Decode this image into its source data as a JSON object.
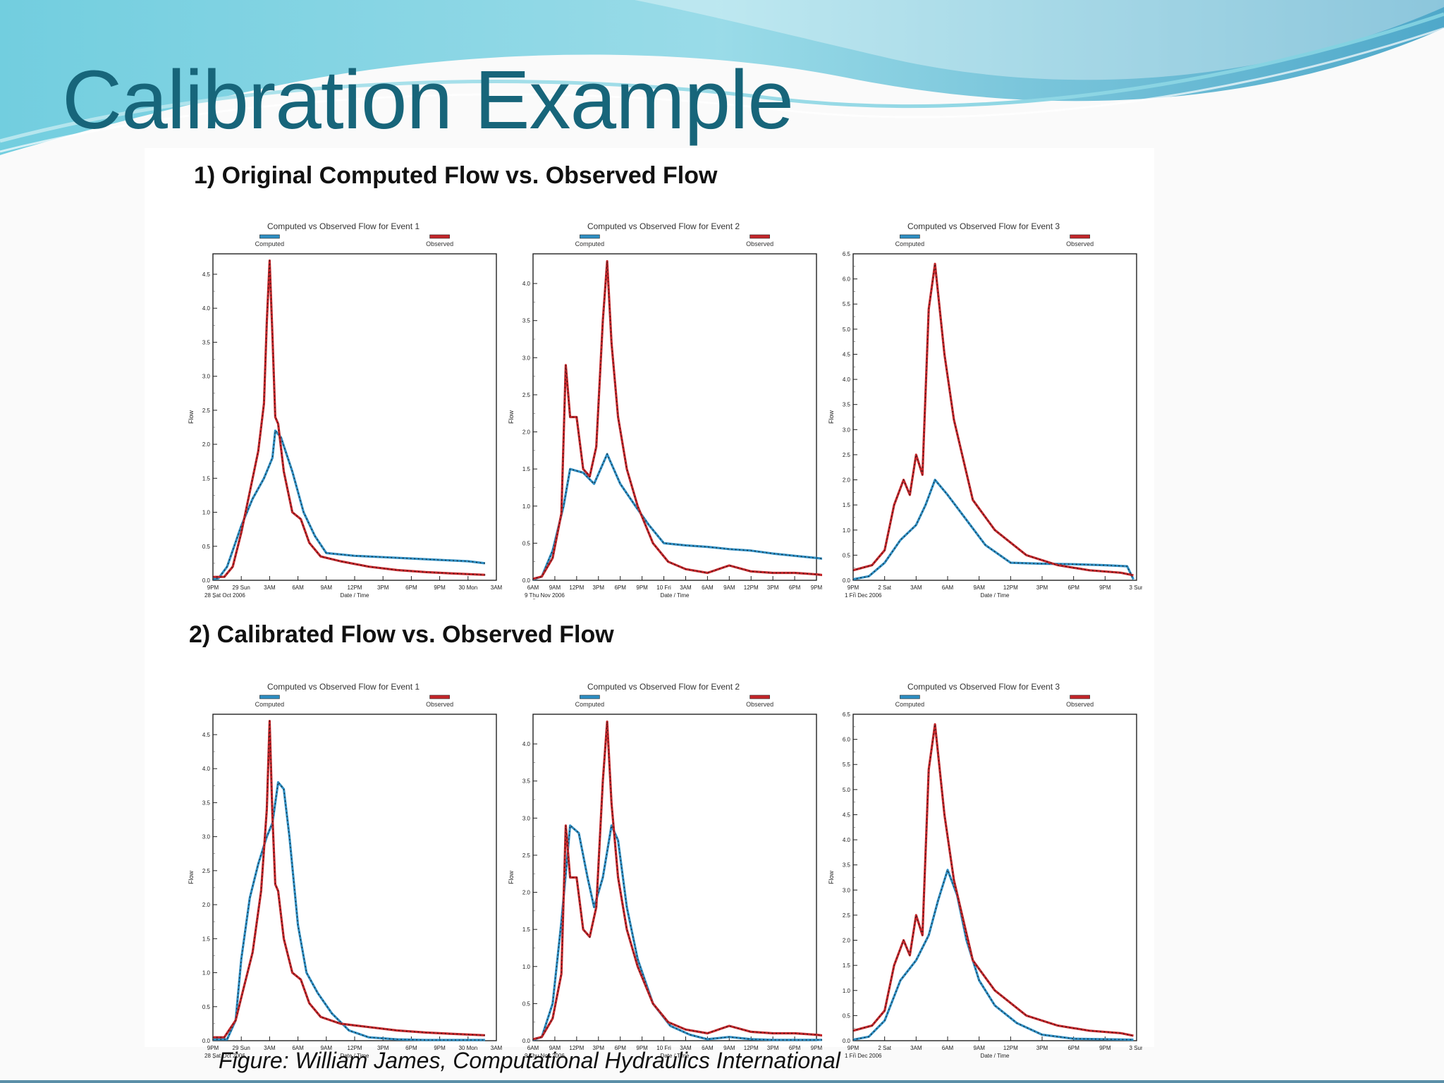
{
  "slide": {
    "title": "Calibration Example",
    "caption": "Figure: William James, Computational Hydraulics International",
    "colors": {
      "title": "#17657a",
      "header_wave_light": "#8fd8e6",
      "header_wave_dark": "#3c9fc4"
    }
  },
  "sections": [
    {
      "heading": "1) Original Computed Flow vs. Observed Flow"
    },
    {
      "heading": "2) Calibrated Flow vs. Observed Flow"
    }
  ],
  "chart_data": [
    {
      "id": "s1-event1",
      "type": "line",
      "title": "Computed vs Observed Flow for Event 1",
      "xlabel": "Date / Time",
      "ylabel": "Flow",
      "x_ticks": [
        "9PM",
        "29 Sun",
        "3AM",
        "6AM",
        "9AM",
        "12PM",
        "3PM",
        "6PM",
        "9PM",
        "30 Mon",
        "3AM"
      ],
      "x_start_label": "28 Sat Oct 2006",
      "ylim": [
        0,
        4.8
      ],
      "y_ticks": [
        "0.0",
        "0.5",
        "1.0",
        "1.5",
        "2.0",
        "2.5",
        "3.0",
        "3.5",
        "4.0",
        "4.5"
      ],
      "series": [
        {
          "name": "Computed",
          "color": "#2f8fc4",
          "x": [
            0,
            0.2,
            0.5,
            1,
            1.4,
            1.8,
            2.1,
            2.2,
            2.4,
            2.8,
            3.2,
            3.6,
            4,
            4.5,
            5,
            6,
            7,
            8,
            9,
            9.6
          ],
          "values": [
            0.02,
            0.03,
            0.2,
            0.8,
            1.2,
            1.5,
            1.8,
            2.2,
            2.1,
            1.6,
            1.0,
            0.65,
            0.4,
            0.38,
            0.36,
            0.34,
            0.32,
            0.3,
            0.28,
            0.25
          ]
        },
        {
          "name": "Observed",
          "color": "#c4262a",
          "x": [
            0,
            0.4,
            0.7,
            1.0,
            1.3,
            1.6,
            1.8,
            1.9,
            2.0,
            2.1,
            2.2,
            2.3,
            2.5,
            2.8,
            3.1,
            3.4,
            3.8,
            4.5,
            5.5,
            6.5,
            7.5,
            8.5,
            9.6
          ],
          "values": [
            0.05,
            0.05,
            0.2,
            0.7,
            1.3,
            1.9,
            2.6,
            3.8,
            4.7,
            3.6,
            2.4,
            2.3,
            1.6,
            1.0,
            0.9,
            0.55,
            0.35,
            0.28,
            0.2,
            0.15,
            0.12,
            0.1,
            0.08
          ]
        }
      ]
    },
    {
      "id": "s1-event2",
      "type": "line",
      "title": "Computed vs Observed Flow for Event 2",
      "xlabel": "Date / Time",
      "ylabel": "Flow",
      "x_ticks": [
        "6AM",
        "9AM",
        "12PM",
        "3PM",
        "6PM",
        "9PM",
        "10 Fri",
        "3AM",
        "6AM",
        "9AM",
        "12PM",
        "3PM",
        "6PM",
        "9PM"
      ],
      "x_start_label": "9 Thu Nov 2006",
      "ylim": [
        0,
        4.4
      ],
      "y_ticks": [
        "0.0",
        "0.5",
        "1.0",
        "1.5",
        "2.0",
        "2.5",
        "3.0",
        "3.5",
        "4.0"
      ],
      "series": [
        {
          "name": "Computed",
          "color": "#2f8fc4",
          "x": [
            0,
            0.4,
            0.9,
            1.4,
            1.7,
            2.3,
            2.8,
            3.4,
            4.0,
            4.7,
            5.3,
            6.0,
            7,
            8,
            9,
            10,
            11,
            12,
            13,
            13.6,
            13.9
          ],
          "values": [
            0.01,
            0.05,
            0.4,
            1.0,
            1.5,
            1.45,
            1.3,
            1.7,
            1.3,
            1.0,
            0.75,
            0.5,
            0.47,
            0.45,
            0.42,
            0.4,
            0.36,
            0.33,
            0.3,
            0.28,
            0.02
          ]
        },
        {
          "name": "Observed",
          "color": "#c4262a",
          "x": [
            0,
            0.4,
            0.9,
            1.3,
            1.5,
            1.7,
            2.0,
            2.3,
            2.6,
            2.9,
            3.2,
            3.4,
            3.6,
            3.9,
            4.3,
            4.8,
            5.5,
            6.2,
            7.0,
            8.0,
            9.0,
            10.0,
            11.0,
            12.0,
            13.0,
            13.9
          ],
          "values": [
            0.02,
            0.05,
            0.3,
            0.9,
            2.9,
            2.2,
            2.2,
            1.5,
            1.4,
            1.8,
            3.5,
            4.3,
            3.2,
            2.2,
            1.5,
            1.0,
            0.5,
            0.25,
            0.15,
            0.1,
            0.2,
            0.12,
            0.1,
            0.1,
            0.08,
            0.05
          ]
        }
      ]
    },
    {
      "id": "s1-event3",
      "type": "line",
      "title": "Computed vs Observed Flow for Event 3",
      "xlabel": "Date / Time",
      "ylabel": "Flow",
      "x_ticks": [
        "9PM",
        "2 Sat",
        "3AM",
        "6AM",
        "9AM",
        "12PM",
        "3PM",
        "6PM",
        "9PM",
        "3 Sun"
      ],
      "x_start_label": "1 Fri Dec 2006",
      "ylim": [
        0,
        6.5
      ],
      "y_ticks": [
        "0.0",
        "0.5",
        "1.0",
        "1.5",
        "2.0",
        "2.5",
        "3.0",
        "3.5",
        "4.0",
        "4.5",
        "5.0",
        "5.5",
        "6.0",
        "6.5"
      ],
      "series": [
        {
          "name": "Computed",
          "color": "#2f8fc4",
          "x": [
            0,
            0.5,
            1.0,
            1.5,
            2.0,
            2.3,
            2.6,
            3.0,
            3.6,
            4.2,
            5.0,
            6,
            7,
            8,
            8.7,
            8.9
          ],
          "values": [
            0.02,
            0.08,
            0.35,
            0.8,
            1.1,
            1.5,
            2.0,
            1.7,
            1.2,
            0.7,
            0.35,
            0.33,
            0.32,
            0.3,
            0.28,
            0.02
          ]
        },
        {
          "name": "Observed",
          "color": "#c4262a",
          "x": [
            0,
            0.6,
            1.0,
            1.3,
            1.6,
            1.8,
            2.0,
            2.2,
            2.4,
            2.6,
            2.9,
            3.2,
            3.8,
            4.5,
            5.5,
            6.5,
            7.5,
            8.5,
            8.9
          ],
          "values": [
            0.2,
            0.3,
            0.6,
            1.5,
            2.0,
            1.7,
            2.5,
            2.1,
            5.4,
            6.3,
            4.5,
            3.2,
            1.6,
            1.0,
            0.5,
            0.3,
            0.2,
            0.15,
            0.1
          ]
        }
      ]
    },
    {
      "id": "s2-event1",
      "type": "line",
      "title": "Computed vs Observed Flow for Event 1",
      "xlabel": "Date / Time",
      "ylabel": "Flow",
      "x_ticks": [
        "9PM",
        "29 Sun",
        "3AM",
        "6AM",
        "9AM",
        "12PM",
        "3PM",
        "6PM",
        "9PM",
        "30 Mon",
        "3AM"
      ],
      "x_start_label": "28 Sat Oct 2006",
      "ylim": [
        0,
        4.8
      ],
      "y_ticks": [
        "0.0",
        "0.5",
        "1.0",
        "1.5",
        "2.0",
        "2.5",
        "3.0",
        "3.5",
        "4.0",
        "4.5"
      ],
      "series": [
        {
          "name": "Computed",
          "color": "#2f8fc4",
          "x": [
            0,
            0.5,
            0.8,
            1.0,
            1.3,
            1.6,
            1.9,
            2.1,
            2.3,
            2.5,
            2.7,
            3.0,
            3.3,
            3.7,
            4.2,
            4.8,
            5.5,
            6.5,
            7.5,
            9.6
          ],
          "values": [
            0.02,
            0.02,
            0.3,
            1.2,
            2.1,
            2.6,
            3.0,
            3.2,
            3.8,
            3.7,
            3.0,
            1.7,
            1.0,
            0.7,
            0.4,
            0.15,
            0.05,
            0.02,
            0.01,
            0.01
          ]
        },
        {
          "name": "Observed",
          "color": "#c4262a",
          "x": [
            0,
            0.4,
            0.8,
            1.1,
            1.4,
            1.7,
            1.9,
            2.0,
            2.1,
            2.2,
            2.3,
            2.5,
            2.8,
            3.1,
            3.4,
            3.8,
            4.5,
            5.5,
            6.5,
            7.5,
            8.5,
            9.6
          ],
          "values": [
            0.05,
            0.05,
            0.3,
            0.8,
            1.3,
            2.2,
            3.4,
            4.7,
            3.3,
            2.3,
            2.2,
            1.5,
            1.0,
            0.9,
            0.55,
            0.35,
            0.25,
            0.2,
            0.15,
            0.12,
            0.1,
            0.08
          ]
        }
      ]
    },
    {
      "id": "s2-event2",
      "type": "line",
      "title": "Computed vs Observed Flow for Event 2",
      "xlabel": "Date / Time",
      "ylabel": "Flow",
      "x_ticks": [
        "6AM",
        "9AM",
        "12PM",
        "3PM",
        "6PM",
        "9PM",
        "10 Fri",
        "3AM",
        "6AM",
        "9AM",
        "12PM",
        "3PM",
        "6PM",
        "9PM"
      ],
      "x_start_label": "9 Thu Nov 2006",
      "ylim": [
        0,
        4.4
      ],
      "y_ticks": [
        "0.0",
        "0.5",
        "1.0",
        "1.5",
        "2.0",
        "2.5",
        "3.0",
        "3.5",
        "4.0"
      ],
      "series": [
        {
          "name": "Computed",
          "color": "#2f8fc4",
          "x": [
            0,
            0.4,
            0.9,
            1.3,
            1.7,
            2.1,
            2.5,
            2.8,
            3.2,
            3.6,
            3.9,
            4.3,
            4.8,
            5.5,
            6.3,
            7.2,
            8,
            9,
            10,
            11,
            13.9
          ],
          "values": [
            0.01,
            0.05,
            0.5,
            1.6,
            2.9,
            2.8,
            2.2,
            1.8,
            2.2,
            2.9,
            2.7,
            1.8,
            1.1,
            0.5,
            0.2,
            0.08,
            0.02,
            0.05,
            0.02,
            0.01,
            0.01
          ]
        },
        {
          "name": "Observed",
          "color": "#c4262a",
          "x": [
            0,
            0.4,
            0.9,
            1.3,
            1.5,
            1.7,
            2.0,
            2.3,
            2.6,
            2.9,
            3.2,
            3.4,
            3.6,
            3.9,
            4.3,
            4.8,
            5.5,
            6.2,
            7.0,
            8.0,
            9.0,
            10.0,
            11.0,
            12.0,
            13.0,
            13.9
          ],
          "values": [
            0.02,
            0.05,
            0.3,
            0.9,
            2.9,
            2.2,
            2.2,
            1.5,
            1.4,
            1.8,
            3.5,
            4.3,
            3.2,
            2.2,
            1.5,
            1.0,
            0.5,
            0.25,
            0.15,
            0.1,
            0.2,
            0.12,
            0.1,
            0.1,
            0.08,
            0.05
          ]
        }
      ]
    },
    {
      "id": "s2-event3",
      "type": "line",
      "title": "Computed vs Observed Flow for Event 3",
      "xlabel": "Date / Time",
      "ylabel": "Flow",
      "x_ticks": [
        "9PM",
        "2 Sat",
        "3AM",
        "6AM",
        "9AM",
        "12PM",
        "3PM",
        "6PM",
        "9PM",
        "3 Sun"
      ],
      "x_start_label": "1 Fri Dec 2006",
      "ylim": [
        0,
        6.5
      ],
      "y_ticks": [
        "0.0",
        "0.5",
        "1.0",
        "1.5",
        "2.0",
        "2.5",
        "3.0",
        "3.5",
        "4.0",
        "4.5",
        "5.0",
        "5.5",
        "6.0",
        "6.5"
      ],
      "series": [
        {
          "name": "Computed",
          "color": "#2f8fc4",
          "x": [
            0,
            0.5,
            1.0,
            1.5,
            2.0,
            2.4,
            2.7,
            3.0,
            3.3,
            3.6,
            4.0,
            4.5,
            5.2,
            6,
            7,
            8.9
          ],
          "values": [
            0.02,
            0.08,
            0.4,
            1.2,
            1.6,
            2.1,
            2.8,
            3.4,
            2.9,
            2.0,
            1.2,
            0.7,
            0.35,
            0.12,
            0.04,
            0.02
          ]
        },
        {
          "name": "Observed",
          "color": "#c4262a",
          "x": [
            0,
            0.6,
            1.0,
            1.3,
            1.6,
            1.8,
            2.0,
            2.2,
            2.4,
            2.6,
            2.9,
            3.2,
            3.8,
            4.5,
            5.5,
            6.5,
            7.5,
            8.5,
            8.9
          ],
          "values": [
            0.2,
            0.3,
            0.6,
            1.5,
            2.0,
            1.7,
            2.5,
            2.1,
            5.4,
            6.3,
            4.5,
            3.2,
            1.6,
            1.0,
            0.5,
            0.3,
            0.2,
            0.15,
            0.1
          ]
        }
      ]
    }
  ]
}
